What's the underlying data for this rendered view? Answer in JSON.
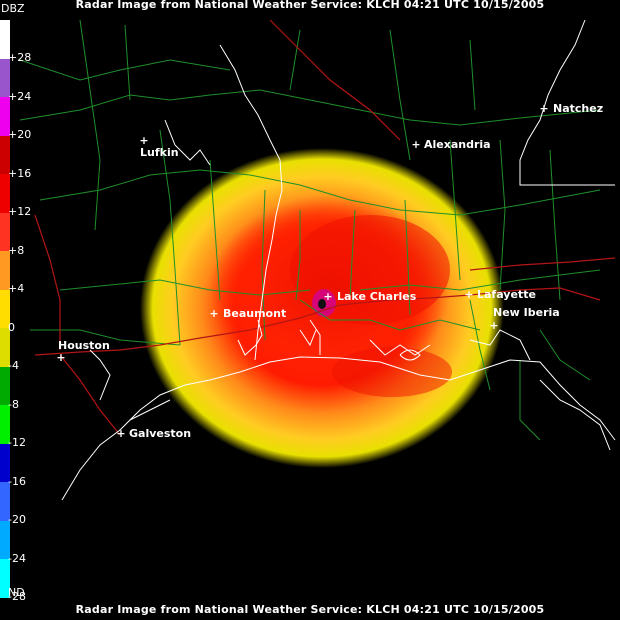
{
  "title_top": "Radar Image from National Weather Service: KLCH   04:21 UTC 10/15/2005",
  "title_bottom": "Radar Image from National Weather Service: KLCH   04:21 UTC 10/15/2005",
  "legend": {
    "unit_label": "DBZ",
    "nd_label": "ND",
    "ticks": [
      "+28",
      "+24",
      "+20",
      "+16",
      "+12",
      "+8",
      "+4",
      "0",
      "-4",
      "-8",
      "-12",
      "-16",
      "-20",
      "-24",
      "-28"
    ],
    "colors": [
      "#ffffff",
      "#9955cc",
      "#ee00ee",
      "#cc0000",
      "#ee0000",
      "#ff3322",
      "#ff9922",
      "#ffdd00",
      "#dddd00",
      "#00aa00",
      "#00ee00",
      "#0000cc",
      "#3366ff",
      "#00aaff",
      "#00ffff"
    ]
  },
  "cities": [
    {
      "name": "Lufkin"
    },
    {
      "name": "Alexandria"
    },
    {
      "name": "Natchez"
    },
    {
      "name": "Lake Charles"
    },
    {
      "name": "Beaumont"
    },
    {
      "name": "Lafayette"
    },
    {
      "name": "New Iberia"
    },
    {
      "name": "Houston"
    },
    {
      "name": "Galveston"
    }
  ]
}
